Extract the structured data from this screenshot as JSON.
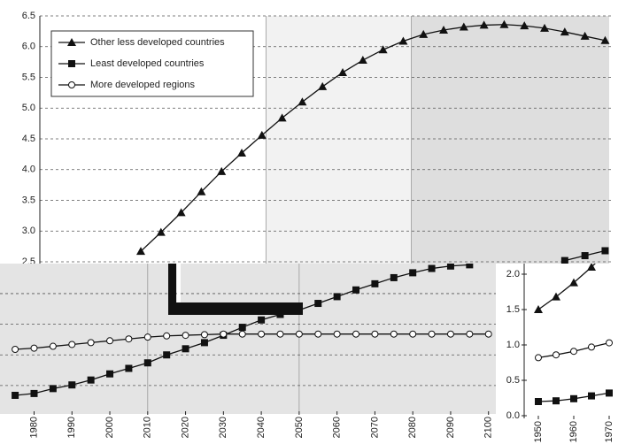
{
  "chart_data": [
    {
      "type": "line",
      "background": "#ffffff",
      "xlim": [
        1960,
        2101
      ],
      "ylim": [
        2.5,
        6.5
      ],
      "yticks": [
        2.5,
        {
          "value": 3,
          "label": "3.0"
        },
        3.5,
        {
          "value": 4,
          "label": "4.0"
        },
        4.5,
        {
          "value": 5,
          "label": "5.0"
        },
        5.5,
        {
          "value": 6,
          "label": "6.0"
        },
        6.5
      ],
      "grid": true,
      "legend": "upper left",
      "shaded": [
        {
          "from": 2016,
          "to": 2052,
          "color": "#f2f2f2"
        },
        {
          "from": 2052,
          "to": 2101,
          "color": "#dedede"
        }
      ],
      "series": [
        {
          "name": "Other less developed countries",
          "marker": "triangle",
          "color": "#111111",
          "x": [
            1985,
            1990,
            1995,
            2000,
            2005,
            2010,
            2015,
            2020,
            2025,
            2030,
            2035,
            2040,
            2045,
            2050,
            2055,
            2060,
            2065,
            2070,
            2075,
            2080,
            2085,
            2090,
            2095,
            2100
          ],
          "values": [
            2.67,
            2.98,
            3.3,
            3.64,
            3.97,
            4.27,
            4.56,
            4.84,
            5.1,
            5.35,
            5.58,
            5.78,
            5.95,
            6.09,
            6.2,
            6.27,
            6.32,
            6.35,
            6.36,
            6.34,
            6.3,
            6.24,
            6.17,
            6.1
          ]
        },
        {
          "name": "Least developed countries",
          "marker": "square",
          "color": "#111111",
          "x": [
            2090,
            2095,
            2100
          ],
          "values": [
            2.52,
            2.6,
            2.68
          ]
        },
        {
          "name": "More developed regions",
          "marker": "circle",
          "color": "#111111",
          "x": [],
          "values": []
        }
      ]
    },
    {
      "type": "line",
      "background": "#e4e4e4",
      "xlim": [
        1971,
        2101
      ],
      "ylim": [
        0.08,
        2.49
      ],
      "ygrid": [
        0.5,
        1,
        1.5,
        2
      ],
      "xgrid": [
        2010,
        2050
      ],
      "grid": true,
      "xticks": [
        1980,
        1990,
        2000,
        2010,
        2020,
        2030,
        2040,
        2050,
        2060,
        2070,
        2080,
        2090,
        2100
      ],
      "series": [
        {
          "marker": "square",
          "color": "#111111",
          "x": [
            1975,
            1980,
            1985,
            1990,
            1995,
            2000,
            2005,
            2010,
            2015,
            2020,
            2025,
            2030,
            2035,
            2040,
            2045,
            2050,
            2055,
            2060,
            2065,
            2070,
            2075,
            2080,
            2085,
            2090,
            2095
          ],
          "values": [
            0.34,
            0.37,
            0.45,
            0.51,
            0.59,
            0.69,
            0.78,
            0.87,
            1.0,
            1.1,
            1.2,
            1.32,
            1.45,
            1.57,
            1.66,
            1.73,
            1.84,
            1.95,
            2.06,
            2.16,
            2.26,
            2.34,
            2.41,
            2.45,
            2.47
          ]
        },
        {
          "marker": "circle",
          "color": "#111111",
          "x": [
            1975,
            1980,
            1985,
            1990,
            1995,
            2000,
            2005,
            2010,
            2015,
            2020,
            2025,
            2030,
            2035,
            2040,
            2045,
            2050,
            2055,
            2060,
            2065,
            2070,
            2075,
            2080,
            2085,
            2090,
            2095,
            2100
          ],
          "values": [
            1.09,
            1.11,
            1.14,
            1.17,
            1.2,
            1.23,
            1.26,
            1.29,
            1.31,
            1.32,
            1.33,
            1.34,
            1.34,
            1.34,
            1.34,
            1.34,
            1.34,
            1.34,
            1.34,
            1.34,
            1.34,
            1.34,
            1.34,
            1.34,
            1.34,
            1.34
          ]
        }
      ]
    },
    {
      "type": "line",
      "background": "#ffffff",
      "xlim": [
        1946,
        1973
      ],
      "ylim": [
        0,
        2.15
      ],
      "yticks": [
        {
          "value": 0,
          "label": "0.0"
        },
        {
          "value": 0.5,
          "label": "0.5"
        },
        {
          "value": 1,
          "label": "1.0"
        },
        {
          "value": 1.5,
          "label": "1.5"
        },
        {
          "value": 2,
          "label": "2.0"
        }
      ],
      "grid": false,
      "xticks": [
        1950,
        1960,
        1970
      ],
      "series": [
        {
          "marker": "triangle",
          "color": "#111111",
          "x": [
            1950,
            1955,
            1960,
            1965,
            1970
          ],
          "values": [
            1.5,
            1.68,
            1.88,
            2.1,
            2.35
          ]
        },
        {
          "marker": "circle",
          "color": "#111111",
          "x": [
            1950,
            1955,
            1960,
            1965,
            1970
          ],
          "values": [
            0.82,
            0.86,
            0.91,
            0.97,
            1.03
          ]
        },
        {
          "marker": "square",
          "color": "#111111",
          "x": [
            1950,
            1955,
            1960,
            1965,
            1970
          ],
          "values": [
            0.2,
            0.21,
            0.24,
            0.28,
            0.32
          ]
        }
      ]
    }
  ]
}
